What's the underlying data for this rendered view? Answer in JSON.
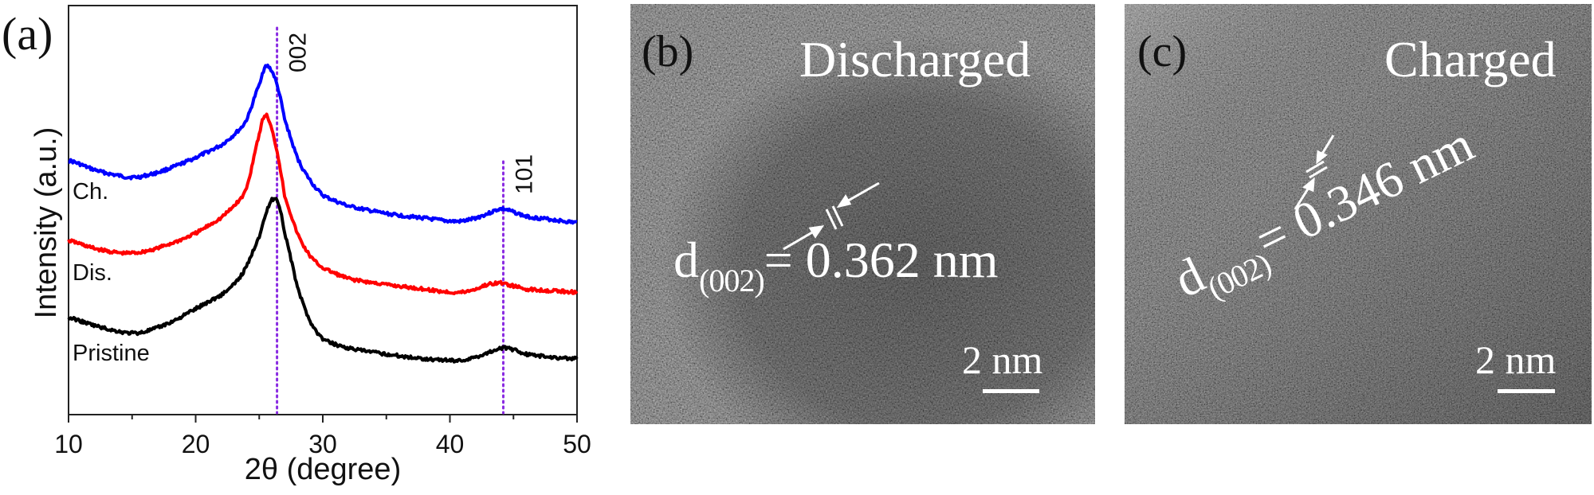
{
  "figure": {
    "panels": {
      "a": {
        "label": "(a)"
      },
      "b": {
        "label": "(b)",
        "title": "Discharged",
        "d_spacing_prefix": "d",
        "d_spacing_sub": "(002)",
        "d_spacing_value": "= 0.362 nm",
        "scale_bar_label": "2 nm"
      },
      "c": {
        "label": "(c)",
        "title": "Charged",
        "d_spacing_prefix": "d",
        "d_spacing_sub": "(002)",
        "d_spacing_value": "= 0.346 nm",
        "scale_bar_label": "2 nm"
      }
    }
  },
  "chart_data": {
    "type": "line",
    "title": "",
    "xlabel": "2θ (degree)",
    "ylabel": "Intensity (a.u.)",
    "xlim": [
      10,
      50
    ],
    "x_ticks": [
      "10",
      "20",
      "30",
      "40",
      "50"
    ],
    "x_minor_ticks": [
      15,
      25,
      35,
      45
    ],
    "y_ticks": [],
    "grid": false,
    "legend": "inline labels at left of each curve",
    "annotations": [
      {
        "text": "002",
        "x": 26.4,
        "type": "dotted vertical line",
        "color": "#8a2be2"
      },
      {
        "text": "101",
        "x": 44.2,
        "type": "dotted vertical line",
        "color": "#8a2be2"
      }
    ],
    "x": [
      10,
      12,
      14,
      15,
      16,
      18,
      20,
      22,
      23,
      24,
      25,
      25.5,
      26,
      26.5,
      27,
      28,
      29,
      30,
      32,
      35,
      38,
      40,
      41,
      42,
      43,
      44,
      45,
      46,
      48,
      50
    ],
    "series": [
      {
        "name": "Ch.",
        "label": "Ch.",
        "color": "#0000ff",
        "values": [
          1.68,
          1.62,
          1.58,
          1.57,
          1.58,
          1.63,
          1.7,
          1.78,
          1.85,
          1.95,
          2.18,
          2.3,
          2.27,
          2.15,
          1.95,
          1.7,
          1.55,
          1.45,
          1.38,
          1.33,
          1.3,
          1.28,
          1.28,
          1.3,
          1.33,
          1.36,
          1.34,
          1.31,
          1.29,
          1.27
        ]
      },
      {
        "name": "Dis.",
        "label": "Dis.",
        "color": "#ff0000",
        "values": [
          1.15,
          1.1,
          1.07,
          1.07,
          1.08,
          1.13,
          1.2,
          1.3,
          1.38,
          1.5,
          1.85,
          1.98,
          1.88,
          1.7,
          1.45,
          1.2,
          1.05,
          0.97,
          0.9,
          0.86,
          0.83,
          0.81,
          0.81,
          0.83,
          0.86,
          0.87,
          0.85,
          0.83,
          0.82,
          0.81
        ]
      },
      {
        "name": "Pristine",
        "label": "Pristine",
        "color": "#000000",
        "values": [
          0.64,
          0.59,
          0.55,
          0.54,
          0.55,
          0.61,
          0.7,
          0.79,
          0.86,
          0.98,
          1.18,
          1.32,
          1.42,
          1.4,
          1.2,
          0.85,
          0.62,
          0.5,
          0.44,
          0.4,
          0.37,
          0.36,
          0.36,
          0.38,
          0.41,
          0.44,
          0.43,
          0.4,
          0.38,
          0.37
        ]
      }
    ]
  }
}
